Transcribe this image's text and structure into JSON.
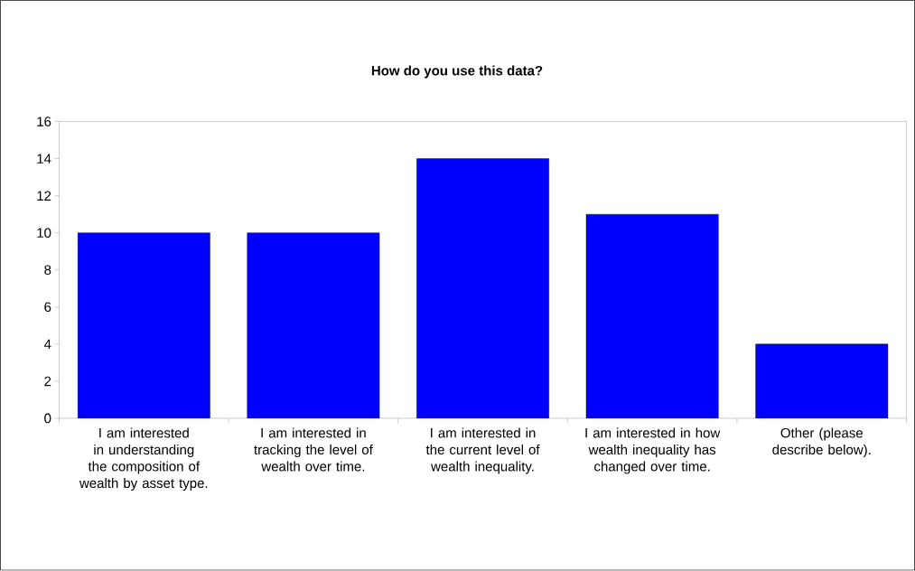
{
  "chart_data": {
    "type": "bar",
    "title": "How do you use this data?",
    "categories": [
      "I am interested in understanding the composition of wealth by asset type.",
      "I am interested in tracking the level of wealth over time.",
      "I am interested in the current level of wealth inequality.",
      "I am interested in how wealth inequality has changed over time.",
      "Other (please describe below)."
    ],
    "values": [
      10,
      10,
      14,
      11,
      4
    ],
    "color": "#0000ff",
    "ylim": [
      0,
      16
    ],
    "yticks": [
      0,
      2,
      4,
      6,
      8,
      10,
      12,
      14,
      16
    ],
    "grid": false
  }
}
